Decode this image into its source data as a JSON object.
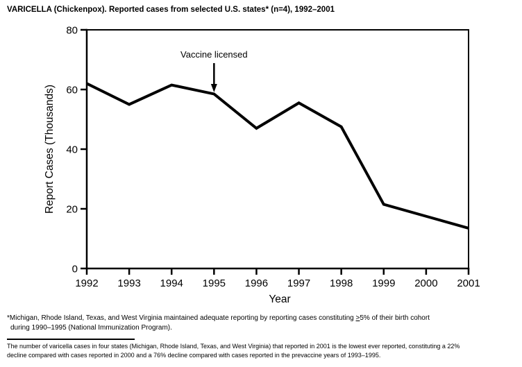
{
  "title": "VARICELLA (Chickenpox). Reported cases from selected U.S. states* (n=4), 1992–2001",
  "chart_data": {
    "type": "line",
    "categories": [
      "1992",
      "1993",
      "1994",
      "1995",
      "1996",
      "1997",
      "1998",
      "1999",
      "2000",
      "2001"
    ],
    "values": [
      62,
      55,
      61.5,
      58.5,
      47,
      55.5,
      47.5,
      21.5,
      17.5,
      13.5
    ],
    "title": "",
    "xlabel": "Year",
    "ylabel": "Report Cases (Thousands)",
    "ylim": [
      0,
      80
    ],
    "yticks": [
      0,
      20,
      40,
      60,
      80
    ],
    "grid": false,
    "frame": true,
    "legend": "none",
    "line_color": "#000000",
    "annotation": {
      "label": "Vaccine licensed",
      "x": "1995",
      "points_to_value": 58.5
    }
  },
  "footnotes": {
    "note1": {
      "line1_before": "*Michigan, Rhode Island, Texas, and West Virginia maintained adequate reporting by reporting cases constituting ",
      "line1_symbol": ">",
      "line1_after": "5% of their birth cohort",
      "line2": "during 1990–1995 (National Immunization Program)."
    },
    "note2": {
      "line1": "The number of varicella cases in four states (Michigan, Rhode Island, Texas, and West Virginia) that reported in 2001 is the lowest ever reported, constituting a 22%",
      "line2": "decline compared with cases reported in 2000 and a 76% decline compared with cases reported in the prevaccine years of 1993–1995."
    }
  }
}
